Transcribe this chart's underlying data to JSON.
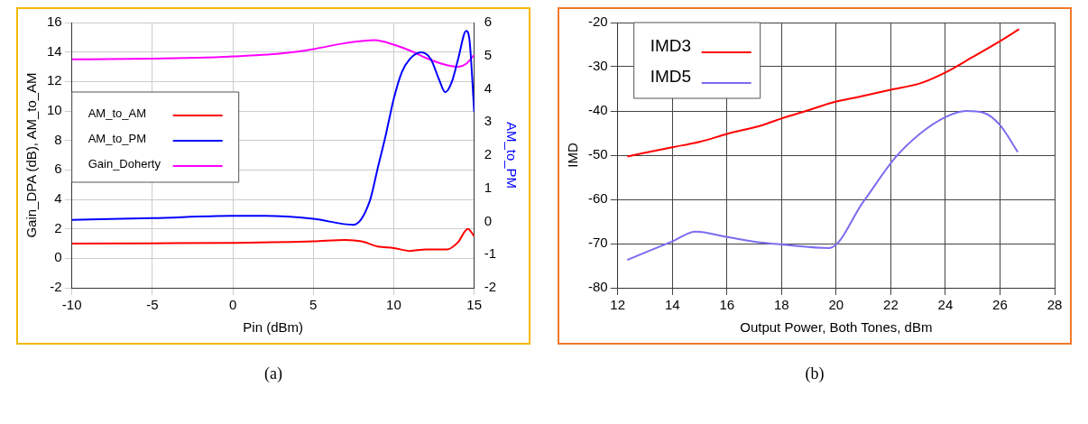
{
  "chart_data": [
    {
      "type": "line",
      "xlabel": "Pin (dBm)",
      "ylabel": "Gain_DPA (dB), AM_to_AM",
      "y2label": "AM_to_PM",
      "xlim": [
        -10,
        15
      ],
      "xticks": [
        -10,
        -5,
        0,
        5,
        10,
        15
      ],
      "ylim": [
        -2,
        16
      ],
      "yticks": [
        -2,
        0,
        2,
        4,
        6,
        8,
        10,
        12,
        14,
        16
      ],
      "y2lim": [
        -2,
        6
      ],
      "y2ticks": [
        -2,
        -1,
        0,
        1,
        2,
        3,
        4,
        5,
        6
      ],
      "grid": true,
      "legend": "left",
      "annotations": [
        "(a)"
      ],
      "series": [
        {
          "name": "AM_to_AM",
          "color": "#ff0000",
          "x": [
            -10,
            -5,
            0,
            5,
            7,
            8,
            9,
            10,
            11,
            12,
            13.3,
            14,
            14.6,
            15
          ],
          "values": [
            1.0,
            1.02,
            1.05,
            1.15,
            1.25,
            1.15,
            0.8,
            0.7,
            0.5,
            0.6,
            0.6,
            1.1,
            2.0,
            1.5
          ]
        },
        {
          "name": "AM_to_PM",
          "color": "#0000ff",
          "axis": "y2",
          "x": [
            -10,
            -5,
            0,
            2,
            5,
            7.5,
            8.5,
            9,
            9.5,
            10,
            10.5,
            11,
            11.7,
            12.3,
            12.8,
            13.2,
            13.6,
            14,
            14.5,
            14.7,
            15
          ],
          "values": [
            0.05,
            0.1,
            0.17,
            0.17,
            0.08,
            -0.1,
            0.6,
            1.6,
            2.6,
            3.7,
            4.5,
            4.9,
            5.1,
            4.9,
            4.3,
            3.9,
            4.2,
            4.9,
            5.75,
            5.5,
            3.3
          ]
        },
        {
          "name": "Gain_Doherty",
          "color": "#ff00ff",
          "x": [
            -10,
            -5,
            0,
            3,
            5,
            7,
            8.8,
            10,
            11,
            12,
            13,
            14,
            14.5,
            15
          ],
          "values": [
            13.5,
            13.55,
            13.7,
            13.9,
            14.2,
            14.6,
            14.8,
            14.5,
            14.1,
            13.6,
            13.2,
            13.0,
            13.2,
            13.8
          ]
        }
      ]
    },
    {
      "type": "line",
      "xlabel": "Output Power, Both Tones, dBm",
      "ylabel": "IMD",
      "xlim": [
        12,
        28
      ],
      "xticks": [
        12,
        14,
        16,
        18,
        20,
        22,
        24,
        26,
        28
      ],
      "ylim": [
        -80,
        -20
      ],
      "yticks": [
        -80,
        -70,
        -60,
        -50,
        -40,
        -30,
        -20
      ],
      "grid": true,
      "legend": "top left",
      "annotations": [
        "(b)"
      ],
      "series": [
        {
          "name": "IMD3",
          "color": "#ff0000",
          "x": [
            12.35,
            14,
            15,
            16,
            17.3,
            18,
            19,
            19.8,
            21,
            22,
            23.1,
            24,
            25,
            26,
            26.7
          ],
          "values": [
            -50.3,
            -48.2,
            -47,
            -45.2,
            -43.2,
            -41.7,
            -39.8,
            -38.2,
            -36.6,
            -35.2,
            -33.7,
            -31.3,
            -27.8,
            -24.2,
            -21.5
          ]
        },
        {
          "name": "IMD5",
          "color": "#7a6cf0",
          "x": [
            12.35,
            14,
            14.85,
            16,
            17.3,
            18,
            19.75,
            21,
            22.2,
            23.1,
            24,
            24.75,
            25.4,
            26,
            26.65
          ],
          "values": [
            -73.7,
            -69.5,
            -67.3,
            -68.5,
            -69.8,
            -70.2,
            -71,
            -60.5,
            -50.3,
            -45,
            -41.4,
            -40,
            -40.4,
            -43.2,
            -49.3
          ]
        }
      ]
    }
  ]
}
